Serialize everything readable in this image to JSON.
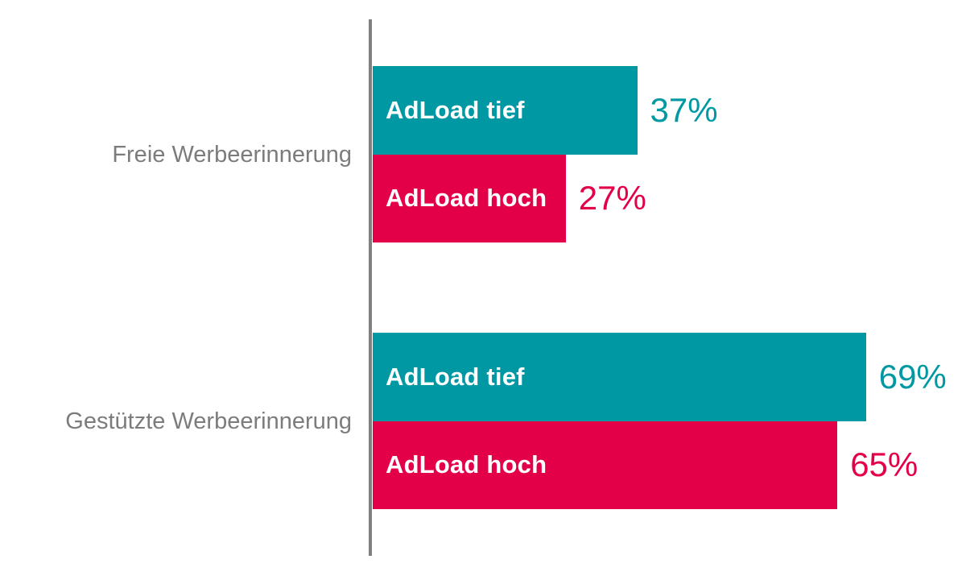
{
  "chart_data": {
    "type": "bar",
    "orientation": "horizontal",
    "title": "",
    "categories": [
      "Freie Werbeerinnerung",
      "Gestützte Werbeerinnerung"
    ],
    "series": [
      {
        "name": "AdLoad tief",
        "values": [
          37,
          69
        ],
        "color": "#0099A3"
      },
      {
        "name": "AdLoad hoch",
        "values": [
          27,
          65
        ],
        "color": "#E40049"
      }
    ],
    "value_labels": [
      [
        "37%",
        "69%"
      ],
      [
        "27%",
        "65%"
      ]
    ],
    "value_unit": "%",
    "xlim": [
      0,
      100
    ],
    "grid": false,
    "legend_position": "none",
    "bar_label_position": "inside-left",
    "value_label_position": "right-of-bar",
    "colors": {
      "axis": "#808080",
      "category_text": "#7C7C7C",
      "bar_label_text": "#FFFFFF",
      "background": "#FFFFFF"
    }
  }
}
